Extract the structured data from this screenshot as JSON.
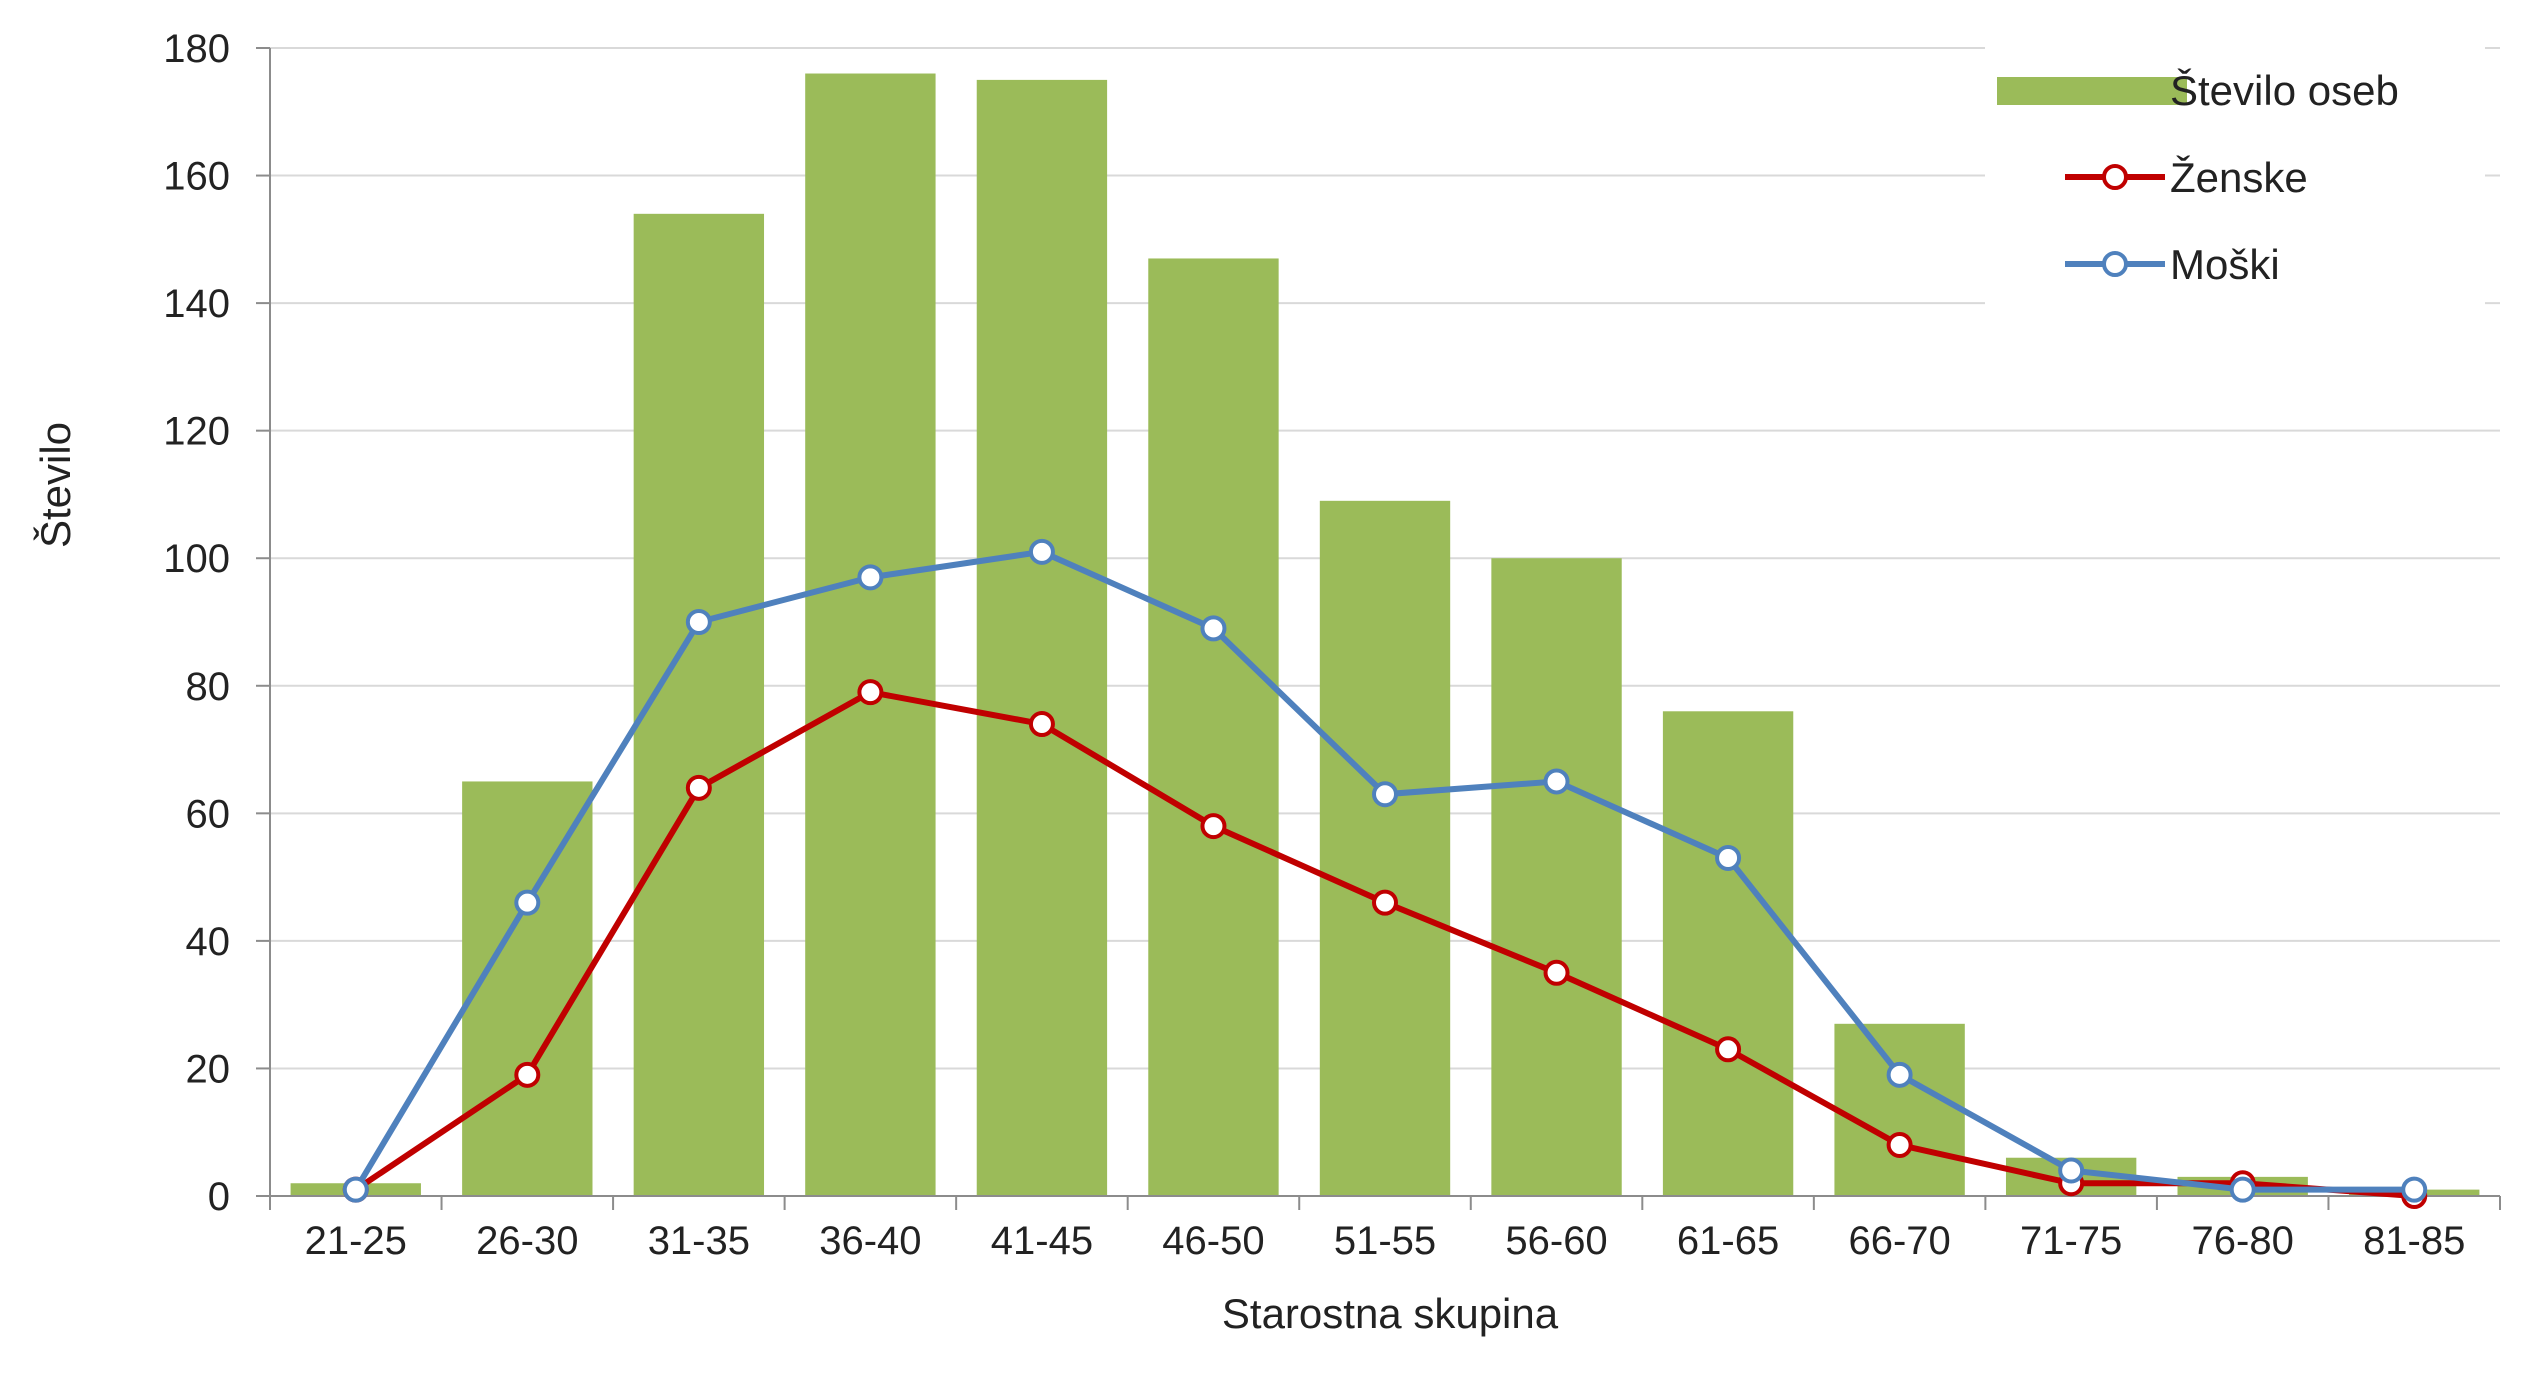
{
  "chart_data": {
    "type": "bar",
    "title": "",
    "xlabel": "Starostna skupina",
    "ylabel": "Število",
    "ylim": [
      0,
      180
    ],
    "yticks": [
      0,
      20,
      40,
      60,
      80,
      100,
      120,
      140,
      160,
      180
    ],
    "grid": true,
    "legend_position": "top-right",
    "categories": [
      "21-25",
      "26-30",
      "31-35",
      "36-40",
      "41-45",
      "46-50",
      "51-55",
      "56-60",
      "61-65",
      "66-70",
      "71-75",
      "76-80",
      "81-85"
    ],
    "series": [
      {
        "name": "Število oseb",
        "kind": "bar",
        "color": "#9BBB59",
        "values": [
          2,
          65,
          154,
          176,
          175,
          147,
          109,
          100,
          76,
          27,
          6,
          3,
          1
        ]
      },
      {
        "name": "Ženske",
        "kind": "line",
        "color": "#C00000",
        "values": [
          1,
          19,
          64,
          79,
          74,
          58,
          46,
          35,
          23,
          8,
          2,
          2,
          0
        ]
      },
      {
        "name": "Moški",
        "kind": "line",
        "color": "#4F81BD",
        "values": [
          1,
          46,
          90,
          97,
          101,
          89,
          63,
          65,
          53,
          19,
          4,
          1,
          1
        ]
      }
    ]
  }
}
